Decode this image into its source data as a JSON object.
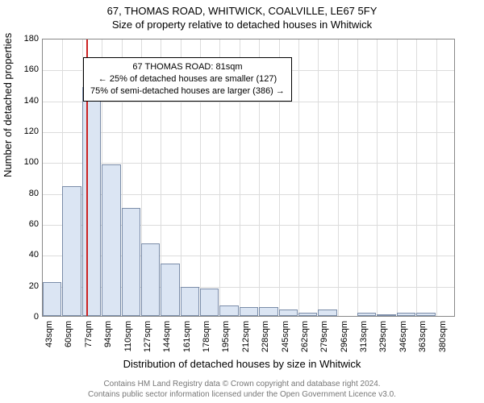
{
  "title_line1": "67, THOMAS ROAD, WHITWICK, COALVILLE, LE67 5FY",
  "title_line2": "Size of property relative to detached houses in Whitwick",
  "chart": {
    "type": "histogram",
    "ylabel": "Number of detached properties",
    "xlabel": "Distribution of detached houses by size in Whitwick",
    "ylim": [
      0,
      180
    ],
    "ytick_step": 20,
    "background_color": "#ffffff",
    "grid_color": "#dcdcdc",
    "border_color": "#888888",
    "bar_fill": "#dbe5f3",
    "bar_border": "#7a8ca8",
    "marker_color": "#cc2222",
    "marker_value": 81,
    "x_start": 43,
    "x_step": 17,
    "x_count": 21,
    "x_unit": "sqm",
    "bins": [
      {
        "x": 43,
        "count": 22
      },
      {
        "x": 60,
        "count": 84
      },
      {
        "x": 77,
        "count": 148
      },
      {
        "x": 94,
        "count": 98
      },
      {
        "x": 110,
        "count": 70
      },
      {
        "x": 127,
        "count": 47
      },
      {
        "x": 144,
        "count": 34
      },
      {
        "x": 161,
        "count": 19
      },
      {
        "x": 178,
        "count": 18
      },
      {
        "x": 195,
        "count": 7
      },
      {
        "x": 212,
        "count": 6
      },
      {
        "x": 228,
        "count": 6
      },
      {
        "x": 245,
        "count": 4
      },
      {
        "x": 262,
        "count": 2
      },
      {
        "x": 279,
        "count": 4
      },
      {
        "x": 296,
        "count": 0
      },
      {
        "x": 313,
        "count": 2
      },
      {
        "x": 329,
        "count": 1
      },
      {
        "x": 346,
        "count": 2
      },
      {
        "x": 363,
        "count": 2
      },
      {
        "x": 380,
        "count": 0
      }
    ]
  },
  "annotation": {
    "line1": "67 THOMAS ROAD: 81sqm",
    "line2": "← 25% of detached houses are smaller (127)",
    "line3": "75% of semi-detached houses are larger (386) →"
  },
  "footer": {
    "line1": "Contains HM Land Registry data © Crown copyright and database right 2024.",
    "line2": "Contains public sector information licensed under the Open Government Licence v3.0."
  },
  "title_fontsize": 13,
  "label_fontsize": 13,
  "tick_fontsize": 11,
  "annotation_fontsize": 11,
  "footer_fontsize": 10
}
